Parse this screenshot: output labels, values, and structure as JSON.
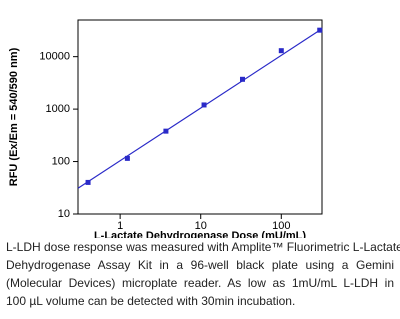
{
  "chart_data": {
    "type": "scatter",
    "xlabel": "L-Lactate Dehydrogenase Dose (mU/mL)",
    "ylabel": "RFU (Ex/Em = 540/590 nm)",
    "x": [
      0.4,
      1.23,
      3.7,
      11,
      33,
      100,
      300
    ],
    "values": [
      40,
      115,
      380,
      1200,
      3700,
      13000,
      32000
    ],
    "color": "#2a2ac8",
    "fit": {
      "x": [
        0.3,
        320
      ],
      "values": [
        31,
        34000
      ]
    },
    "xlog": true,
    "ylog": true,
    "xlim": [
      0.3,
      320
    ],
    "ylim": [
      10,
      50000
    ],
    "xticks": [
      1,
      10,
      100
    ],
    "yticks": [
      10,
      100,
      1000,
      10000
    ]
  },
  "caption": [
    "L-LDH dose response was measured with Amplite™ Fluorimetric L-Lactate",
    "Dehydrogenase Assay Kit in a 96-well black plate using a Gemini",
    "(Molecular Devices) microplate reader. As low as 1mU/mL L-LDH in",
    "100 µL volume can be detected with 30min incubation."
  ]
}
